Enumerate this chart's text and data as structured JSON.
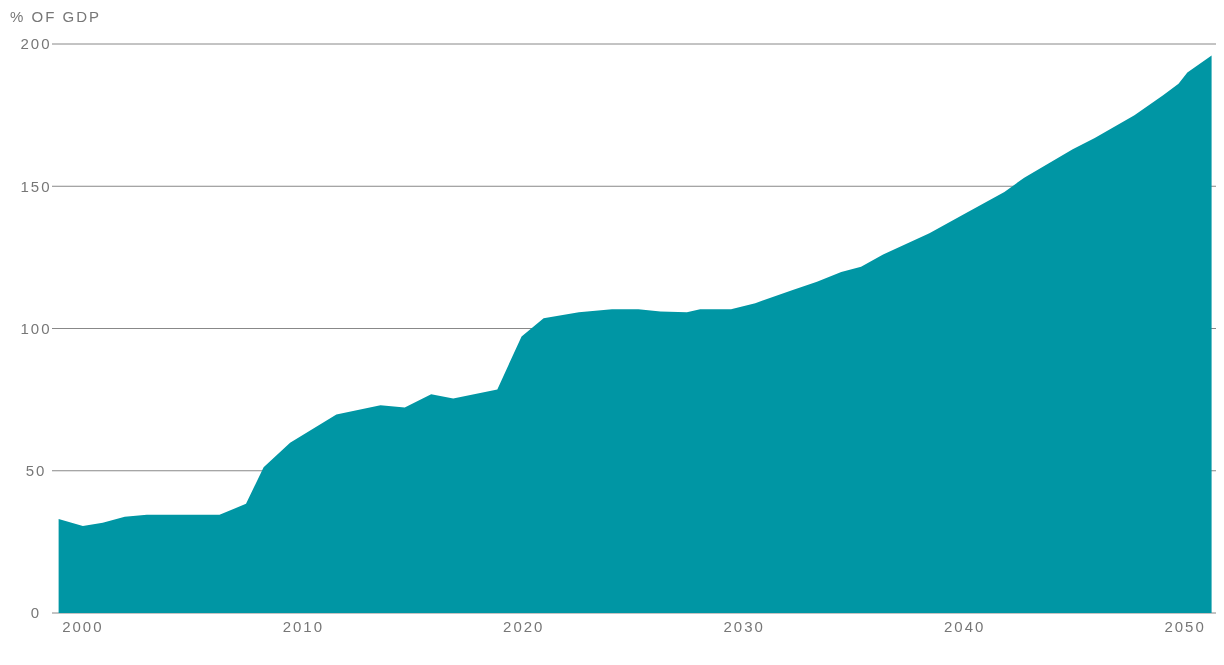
{
  "chart_data": {
    "type": "area",
    "ylabel": "% OF GDP",
    "x": [
      1998.9,
      2000,
      2000.9,
      2001.9,
      2002.9,
      2006.2,
      2007.4,
      2008.2,
      2009.4,
      2011.5,
      2013.5,
      2014.6,
      2015.8,
      2016.8,
      2018.8,
      2019.9,
      2020.9,
      2022.5,
      2024,
      2025.2,
      2026.2,
      2027.4,
      2028,
      2029.4,
      2030.5,
      2032.2,
      2033.3,
      2034.4,
      2035.3,
      2036.3,
      2038.4,
      2039.9,
      2041.8,
      2042.7,
      2043.8,
      2044.9,
      2045.9,
      2047.7,
      2049,
      2049.7,
      2050.1,
      2051.2
    ],
    "series": [
      {
        "color": "#0096a4",
        "values": [
          33,
          30.6,
          31.7,
          33.8,
          34.5,
          34.5,
          38.4,
          51.2,
          59.8,
          69.8,
          73,
          72.2,
          76.9,
          75.4,
          78.6,
          97.2,
          103.6,
          105.7,
          106.8,
          106.8,
          106,
          105.7,
          106.8,
          106.8,
          108.9,
          113.5,
          116.4,
          119.9,
          121.7,
          126,
          133.5,
          139.9,
          148,
          153,
          158,
          163,
          167,
          175,
          182,
          186,
          190,
          196
        ]
      }
    ],
    "xlim": [
      1998.6,
      2051.4
    ],
    "xticks": [
      2000,
      2010,
      2020,
      2030,
      2040,
      2050
    ],
    "ylim": [
      0,
      200
    ],
    "yticks": [
      0,
      50,
      100,
      150,
      200
    ],
    "grid": "y",
    "legend": false
  }
}
